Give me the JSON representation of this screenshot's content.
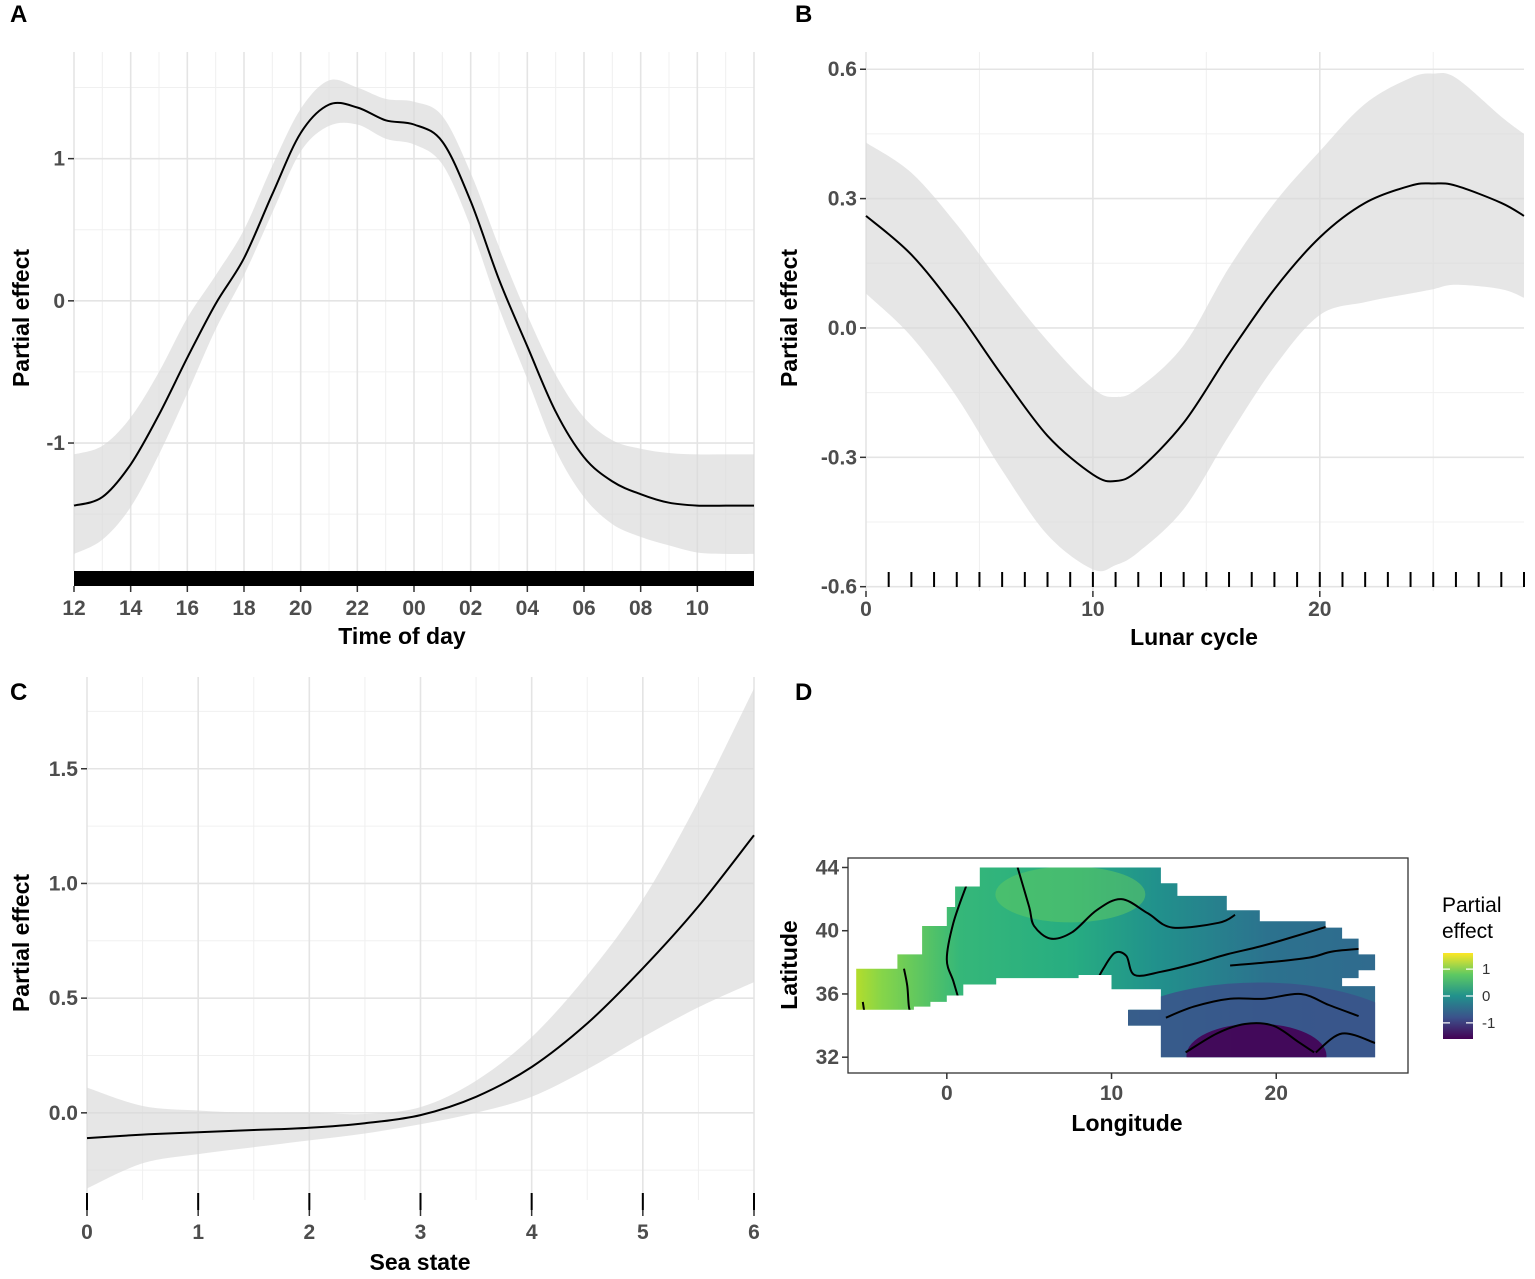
{
  "chart_data": [
    {
      "panel": "A",
      "type": "line",
      "xlabel": "Time of day",
      "ylabel": "Partial effect",
      "x_tick_labels": [
        "12",
        "14",
        "16",
        "18",
        "20",
        "22",
        "00",
        "02",
        "04",
        "06",
        "08",
        "10"
      ],
      "y_tick_labels": [
        "1",
        "0",
        "-1"
      ],
      "x_unit": "hours since 12:00",
      "xlim": [
        0,
        24
      ],
      "ylim": [
        -1.9,
        1.75
      ],
      "y_ticks": [
        1,
        0,
        -1
      ],
      "rug": "continuous",
      "series": [
        {
          "name": "fit",
          "x": [
            0,
            1,
            2,
            3,
            4,
            5,
            6,
            7,
            8,
            9,
            10,
            11,
            12,
            13,
            14,
            15,
            16,
            17,
            18,
            19,
            20,
            21,
            22,
            23,
            24
          ],
          "y": [
            -1.44,
            -1.38,
            -1.15,
            -0.8,
            -0.4,
            -0.02,
            0.3,
            0.75,
            1.18,
            1.38,
            1.36,
            1.27,
            1.24,
            1.12,
            0.7,
            0.15,
            -0.32,
            -0.78,
            -1.1,
            -1.27,
            -1.36,
            -1.42,
            -1.44,
            -1.44,
            -1.44
          ],
          "lower": [
            -1.78,
            -1.68,
            -1.45,
            -1.08,
            -0.65,
            -0.2,
            0.18,
            0.62,
            1.05,
            1.23,
            1.24,
            1.14,
            1.1,
            0.96,
            0.52,
            -0.05,
            -0.55,
            -1.05,
            -1.38,
            -1.57,
            -1.66,
            -1.72,
            -1.77,
            -1.78,
            -1.78
          ],
          "upper": [
            -1.08,
            -1.02,
            -0.82,
            -0.5,
            -0.12,
            0.18,
            0.5,
            0.95,
            1.35,
            1.55,
            1.5,
            1.42,
            1.4,
            1.3,
            0.9,
            0.38,
            -0.1,
            -0.52,
            -0.82,
            -0.98,
            -1.04,
            -1.07,
            -1.08,
            -1.08,
            -1.08
          ]
        }
      ]
    },
    {
      "panel": "B",
      "type": "line",
      "xlabel": "Lunar cycle",
      "ylabel": "Partial effect",
      "x_tick_labels": [
        "0",
        "10",
        "20"
      ],
      "y_tick_labels": [
        "0.6",
        "0.3",
        "0.0",
        "-0.3",
        "-0.6"
      ],
      "xlim": [
        0,
        29
      ],
      "ylim": [
        -0.61,
        0.64
      ],
      "x_ticks": [
        0,
        10,
        20
      ],
      "y_ticks": [
        0.6,
        0.3,
        0.0,
        -0.3,
        -0.6
      ],
      "rug_x": [
        1,
        2,
        3,
        4,
        5,
        6,
        7,
        8,
        9,
        10,
        11,
        12,
        13,
        14,
        15,
        16,
        17,
        18,
        19,
        20,
        21,
        22,
        23,
        24,
        25,
        26,
        27,
        28,
        29
      ],
      "series": [
        {
          "name": "fit",
          "x": [
            0,
            2,
            4,
            6,
            8,
            10,
            11,
            12,
            14,
            16,
            18,
            20,
            22,
            24,
            25,
            26,
            28,
            29
          ],
          "y": [
            0.26,
            0.17,
            0.04,
            -0.11,
            -0.25,
            -0.34,
            -0.355,
            -0.33,
            -0.22,
            -0.06,
            0.09,
            0.21,
            0.29,
            0.33,
            0.335,
            0.33,
            0.29,
            0.26
          ],
          "lower": [
            0.08,
            -0.02,
            -0.16,
            -0.33,
            -0.48,
            -0.56,
            -0.55,
            -0.52,
            -0.42,
            -0.25,
            -0.09,
            0.03,
            0.06,
            0.08,
            0.09,
            0.1,
            0.09,
            0.07
          ],
          "upper": [
            0.43,
            0.36,
            0.24,
            0.1,
            -0.03,
            -0.14,
            -0.16,
            -0.14,
            -0.04,
            0.14,
            0.29,
            0.41,
            0.52,
            0.58,
            0.59,
            0.58,
            0.49,
            0.45
          ]
        }
      ]
    },
    {
      "panel": "C",
      "type": "line",
      "xlabel": "Sea state",
      "ylabel": "Partial effect",
      "x_tick_labels": [
        "0",
        "1",
        "2",
        "3",
        "4",
        "5",
        "6"
      ],
      "y_tick_labels": [
        "1.5",
        "1.0",
        "0.5",
        "0.0"
      ],
      "xlim": [
        0,
        6
      ],
      "ylim": [
        -0.38,
        1.9
      ],
      "x_ticks": [
        0,
        1,
        2,
        3,
        4,
        5,
        6
      ],
      "y_ticks": [
        1.5,
        1.0,
        0.5,
        0.0
      ],
      "rug_x": [
        0,
        1,
        2,
        3,
        4,
        5,
        6
      ],
      "series": [
        {
          "name": "fit",
          "x": [
            0,
            0.5,
            1,
            1.5,
            2,
            2.5,
            3,
            3.5,
            4,
            4.5,
            5,
            5.5,
            6
          ],
          "y": [
            -0.11,
            -0.095,
            -0.085,
            -0.075,
            -0.065,
            -0.045,
            -0.01,
            0.07,
            0.2,
            0.39,
            0.63,
            0.9,
            1.21
          ],
          "lower": [
            -0.33,
            -0.22,
            -0.18,
            -0.15,
            -0.12,
            -0.09,
            -0.05,
            0.0,
            0.07,
            0.19,
            0.33,
            0.46,
            0.57
          ],
          "upper": [
            0.11,
            0.03,
            0.01,
            0.0,
            0.0,
            -0.005,
            0.025,
            0.14,
            0.33,
            0.6,
            0.93,
            1.36,
            1.85
          ]
        }
      ]
    },
    {
      "panel": "D",
      "type": "heatmap",
      "xlabel": "Longitude",
      "ylabel": "Latitude",
      "x_tick_labels": [
        "0",
        "10",
        "20"
      ],
      "y_tick_labels": [
        "44",
        "40",
        "36",
        "32"
      ],
      "xlim": [
        -6,
        28
      ],
      "ylim": [
        31,
        44.6
      ],
      "x_ticks": [
        0,
        10,
        20
      ],
      "y_ticks": [
        44,
        40,
        36,
        32
      ],
      "legend": {
        "title_line1": "Partial",
        "title_line2": "effect",
        "labels": [
          "1",
          "0",
          "-1"
        ],
        "values": [
          1,
          0,
          -1
        ],
        "min": -1.6,
        "max": 1.6
      },
      "colors": [
        "#440154",
        "#3b528b",
        "#21918c",
        "#5ec962",
        "#fde725"
      ],
      "region_outline": [
        [
          -5.5,
          35.5
        ],
        [
          -5.5,
          37.6
        ],
        [
          -3,
          37.6
        ],
        [
          -3,
          38.5
        ],
        [
          -1.5,
          38.5
        ],
        [
          -1.5,
          40.3
        ],
        [
          0,
          40.3
        ],
        [
          0,
          41.5
        ],
        [
          0.5,
          41.5
        ],
        [
          0.5,
          42.8
        ],
        [
          2,
          42.8
        ],
        [
          2,
          44
        ],
        [
          13,
          44
        ],
        [
          13,
          43
        ],
        [
          14,
          43
        ],
        [
          14,
          42.2
        ],
        [
          17,
          42.2
        ],
        [
          17,
          41.3
        ],
        [
          19,
          41.3
        ],
        [
          19,
          40.6
        ],
        [
          23,
          40.6
        ],
        [
          23,
          40.2
        ],
        [
          24,
          40.2
        ],
        [
          24,
          39.5
        ],
        [
          25,
          39.5
        ],
        [
          25,
          38.5
        ],
        [
          26,
          38.5
        ],
        [
          26,
          37.5
        ],
        [
          25,
          37.5
        ],
        [
          25,
          37
        ],
        [
          24,
          37
        ],
        [
          24,
          36.5
        ],
        [
          26,
          36.5
        ],
        [
          26,
          32
        ],
        [
          13,
          32
        ],
        [
          13,
          34
        ],
        [
          11,
          34
        ],
        [
          11,
          35
        ],
        [
          13,
          35
        ],
        [
          13,
          36.3
        ],
        [
          10,
          36.3
        ],
        [
          10,
          37.2
        ],
        [
          8,
          37.2
        ],
        [
          8,
          37
        ],
        [
          3,
          37
        ],
        [
          3,
          36.6
        ],
        [
          1,
          36.6
        ],
        [
          1,
          35.9
        ],
        [
          0,
          35.9
        ],
        [
          0,
          35.5
        ],
        [
          -1,
          35.5
        ],
        [
          -1,
          35.2
        ],
        [
          -2,
          35.2
        ],
        [
          -2,
          35
        ],
        [
          -5.5,
          35
        ]
      ],
      "contours": [
        [
          [
            -5.1,
            35.5
          ],
          [
            -5.0,
            34.8
          ],
          [
            -4.9,
            34.2
          ]
        ],
        [
          [
            -2.6,
            37.6
          ],
          [
            -2.4,
            36.5
          ],
          [
            -2.3,
            35.2
          ],
          [
            -2.1,
            34.3
          ]
        ],
        [
          [
            1.2,
            42.9
          ],
          [
            0.4,
            40.5
          ],
          [
            0.0,
            38.2
          ],
          [
            0.4,
            36.8
          ],
          [
            0.8,
            35.4
          ],
          [
            1.0,
            34.9
          ]
        ],
        [
          [
            4.3,
            44.0
          ],
          [
            5.0,
            41.5
          ],
          [
            5.3,
            40.3
          ],
          [
            6.3,
            39.5
          ],
          [
            7.6,
            39.9
          ],
          [
            9.1,
            41.3
          ],
          [
            10.6,
            42.0
          ],
          [
            12.2,
            41.1
          ],
          [
            13.7,
            40.2
          ],
          [
            16.5,
            40.5
          ],
          [
            17.5,
            41.0
          ]
        ],
        [
          [
            9.1,
            36.8
          ],
          [
            9.5,
            37.6
          ],
          [
            10.2,
            38.6
          ],
          [
            10.9,
            38.4
          ],
          [
            11.4,
            37.2
          ],
          [
            13.0,
            37.4
          ],
          [
            15.0,
            37.9
          ],
          [
            17.0,
            38.5
          ],
          [
            19.0,
            39.0
          ],
          [
            21.0,
            39.6
          ],
          [
            23.2,
            40.3
          ]
        ],
        [
          [
            17.2,
            37.8
          ],
          [
            19.5,
            38.0
          ],
          [
            22.0,
            38.3
          ],
          [
            23.5,
            38.7
          ],
          [
            25.8,
            38.9
          ]
        ],
        [
          [
            13.3,
            34.5
          ],
          [
            15.0,
            35.2
          ],
          [
            17.2,
            35.7
          ],
          [
            19.3,
            35.7
          ],
          [
            21.5,
            36.0
          ],
          [
            23.2,
            35.3
          ],
          [
            25.0,
            34.6
          ]
        ],
        [
          [
            14.5,
            32.3
          ],
          [
            16.4,
            33.5
          ],
          [
            18.1,
            34.1
          ],
          [
            19.8,
            34.0
          ],
          [
            21.3,
            33.0
          ],
          [
            22.3,
            32.3
          ]
        ],
        [
          [
            22.4,
            32.3
          ],
          [
            24.0,
            33.5
          ],
          [
            26.0,
            32.9
          ]
        ]
      ]
    }
  ],
  "panel_labels": [
    "A",
    "B",
    "C",
    "D"
  ]
}
